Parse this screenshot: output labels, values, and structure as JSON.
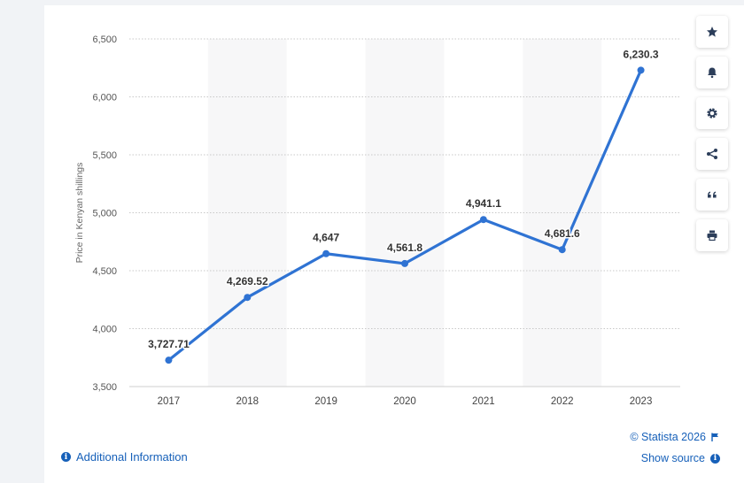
{
  "chart_data": {
    "type": "line",
    "categories": [
      "2017",
      "2018",
      "2019",
      "2020",
      "2021",
      "2022",
      "2023"
    ],
    "values": [
      3727.71,
      4269.52,
      4647,
      4561.8,
      4941.1,
      4681.6,
      6230.3
    ],
    "value_labels": [
      "3,727.71",
      "4,269.52",
      "4,647",
      "4,561.8",
      "4,941.1",
      "4,681.6",
      "6,230.3"
    ],
    "ylabel": "Price in Kenyan shillings",
    "ylim": [
      3500,
      6500
    ],
    "yticks": [
      3500,
      4000,
      4500,
      5000,
      5500,
      6000,
      6500
    ],
    "ytick_labels": [
      "3,500",
      "4,000",
      "4,500",
      "5,000",
      "5,500",
      "6,000",
      "6,500"
    ],
    "grid": true,
    "line_color": "#2f73d3"
  },
  "toolbar": {
    "buttons": [
      {
        "icon": "star-icon",
        "name": "favorite-button"
      },
      {
        "icon": "bell-icon",
        "name": "notification-button"
      },
      {
        "icon": "gear-icon",
        "name": "settings-button"
      },
      {
        "icon": "share-icon",
        "name": "share-button"
      },
      {
        "icon": "quote-icon",
        "name": "cite-button"
      },
      {
        "icon": "print-icon",
        "name": "print-button"
      }
    ]
  },
  "footer": {
    "additional_info": "Additional Information",
    "copyright": "© Statista 2026",
    "show_source": "Show source"
  }
}
